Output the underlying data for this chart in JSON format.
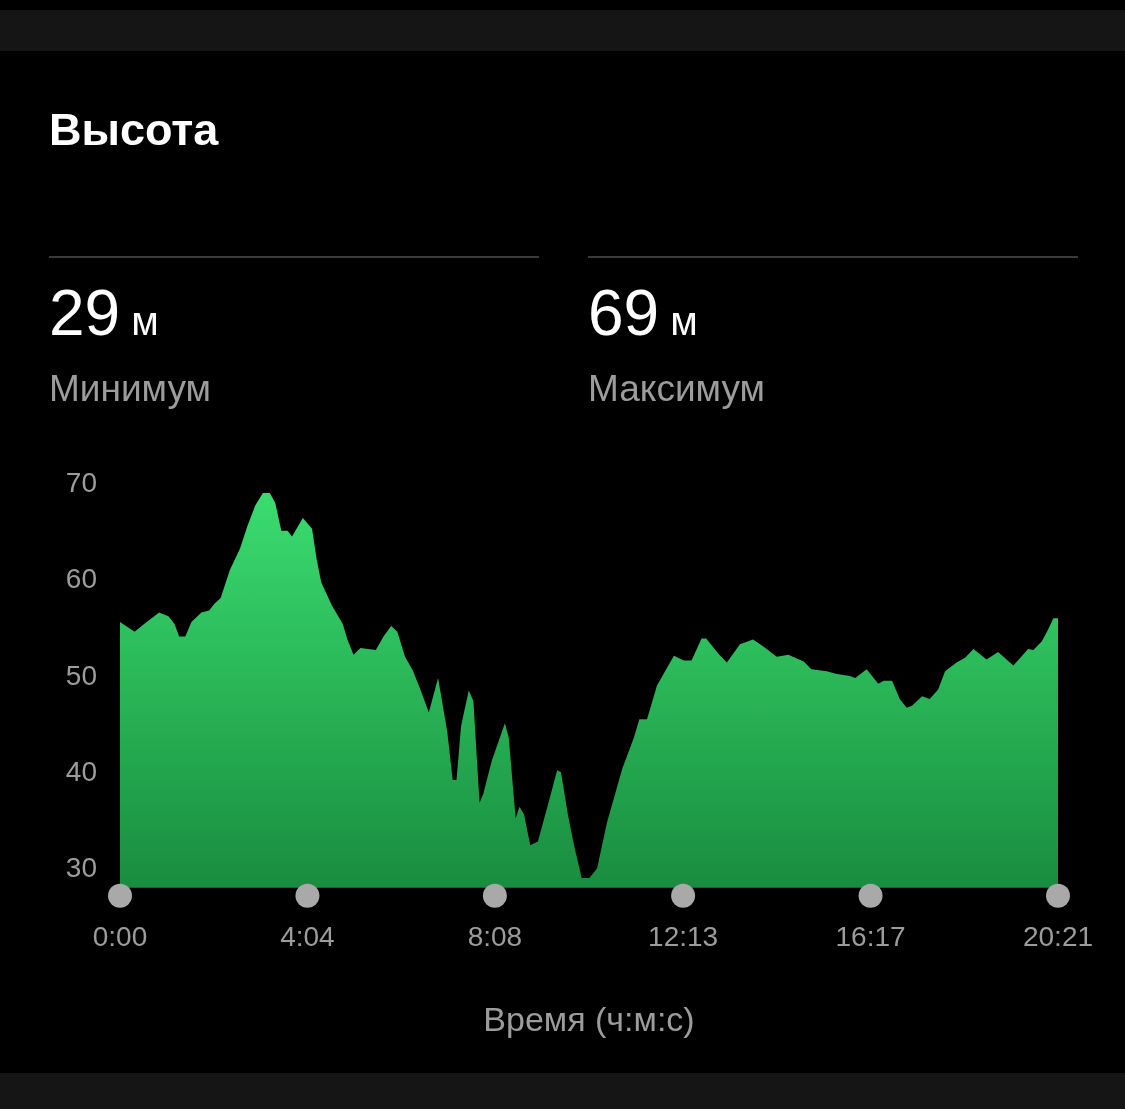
{
  "chart_data": {
    "type": "area",
    "title": "Высота",
    "annotations": [
      "29 м",
      "Минимум",
      "69 м",
      "Максимум"
    ],
    "xlabel": "Время (ч:м:с)",
    "x": [
      0,
      19,
      33,
      51,
      63,
      71,
      77,
      85,
      93,
      106,
      116,
      123,
      131,
      143,
      156,
      166,
      176,
      186,
      195,
      202,
      210,
      218,
      224,
      238,
      250,
      256,
      262,
      276,
      290,
      296,
      304,
      313,
      333,
      343,
      353,
      361,
      371,
      381,
      390,
      402,
      414,
      426,
      433,
      438,
      444,
      454,
      460,
      468,
      473,
      484,
      501,
      506,
      515,
      520,
      526,
      534,
      544,
      559,
      569,
      574,
      583,
      591,
      601,
      611,
      621,
      634,
      654,
      669,
      676,
      686,
      699,
      721,
      734,
      744,
      757,
      763,
      779,
      790,
      807,
      824,
      837,
      855,
      870,
      890,
      900,
      920,
      933,
      950,
      957,
      972,
      987,
      994,
      1005,
      1015,
      1024,
      1031,
      1044,
      1054,
      1065,
      1074,
      1089,
      1100,
      1111,
      1128,
      1143,
      1154,
      1163,
      1172,
      1182,
      1189,
      1200,
      1208,
      1215,
      1221
    ],
    "values": [
      55.5,
      54.5,
      55.4,
      56.5,
      56.1,
      55.3,
      54.0,
      54.0,
      55.5,
      56.5,
      56.7,
      57.4,
      58.0,
      60.9,
      63.1,
      65.5,
      67.6,
      68.9,
      68.9,
      67.9,
      65.0,
      65.0,
      64.4,
      66.3,
      65.2,
      62.0,
      59.6,
      57.2,
      55.3,
      53.7,
      52.1,
      52.8,
      52.6,
      54.0,
      55.1,
      54.5,
      51.9,
      50.5,
      48.7,
      46.1,
      49.7,
      44.1,
      39.1,
      39.1,
      44.7,
      48.4,
      47.3,
      36.7,
      37.7,
      41.1,
      45.0,
      43.5,
      35.1,
      36.3,
      35.5,
      32.3,
      32.7,
      37.1,
      40.1,
      39.9,
      35.5,
      32.3,
      28.9,
      28.9,
      29.9,
      34.7,
      40.3,
      43.5,
      45.4,
      45.4,
      48.9,
      52.0,
      51.5,
      51.5,
      53.8,
      53.8,
      52.2,
      51.3,
      53.2,
      53.7,
      53.0,
      51.9,
      52.1,
      51.4,
      50.6,
      50.4,
      50.1,
      49.9,
      49.7,
      50.6,
      49.1,
      49.4,
      49.4,
      47.5,
      46.6,
      46.8,
      47.8,
      47.5,
      48.5,
      50.4,
      51.3,
      51.8,
      52.7,
      51.6,
      52.4,
      51.6,
      51.0,
      51.8,
      52.7,
      52.6,
      53.5,
      54.7,
      55.9,
      55.9
    ],
    "color": "#1fb04e",
    "xlim": [
      0,
      1221
    ],
    "xticks": [
      {
        "value": 0,
        "label": "0:00"
      },
      {
        "value": 244,
        "label": "4:04"
      },
      {
        "value": 488,
        "label": "8:08"
      },
      {
        "value": 733,
        "label": "12:13"
      },
      {
        "value": 977,
        "label": "16:17"
      },
      {
        "value": 1221,
        "label": "20:21"
      }
    ],
    "ylim": [
      28,
      70
    ],
    "yticks": [
      30,
      40,
      50,
      60,
      70
    ]
  }
}
